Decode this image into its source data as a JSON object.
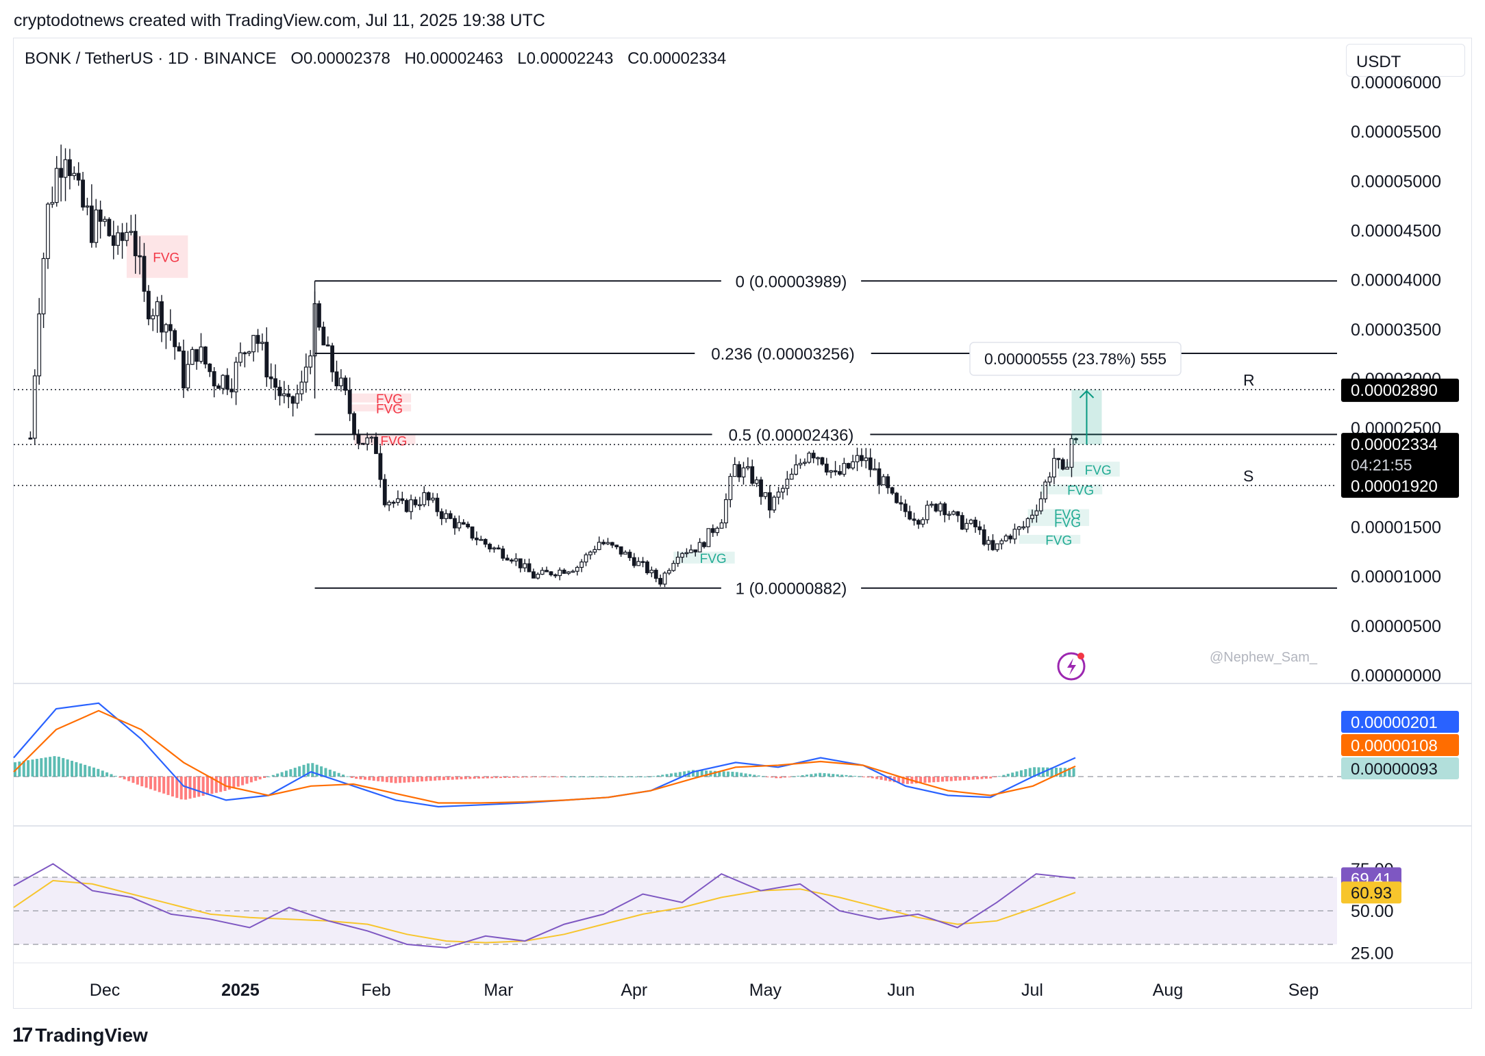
{
  "header": {
    "text": "cryptodotnews created with TradingView.com, Jul 11, 2025 19:38 UTC"
  },
  "symbol": {
    "pair": "BONK / TetherUS · 1D · BINANCE",
    "open": "O0.00002378",
    "high": "H0.00002463",
    "low": "L0.00002243",
    "close": "C0.00002334"
  },
  "currency": "USDT",
  "brand": "TradingView",
  "watermark": "@Nephew_Sam_",
  "colors": {
    "up": "#089981",
    "down": "#f23645",
    "candle": "#131722",
    "macd": "#2962ff",
    "signal": "#ff6d00",
    "rsi": "#7e57c2",
    "rsi_ma": "#f7c52c"
  },
  "chart_data": [
    {
      "type": "candlestick",
      "title": "BONK / TetherUS · 1D · BINANCE",
      "x_ticks": [
        "Dec",
        "2025",
        "Feb",
        "Mar",
        "Apr",
        "May",
        "Jun",
        "Jul",
        "Aug",
        "Sep"
      ],
      "y_ticks": [
        "0.00006000",
        "0.00005500",
        "0.00005000",
        "0.00004500",
        "0.00004000",
        "0.00003500",
        "0.00003000",
        "0.00002500",
        "0.00002000",
        "0.00001500",
        "0.00001000",
        "0.00000500",
        "0.00000000"
      ],
      "ylim": [
        0,
        6e-05
      ],
      "fib_levels": [
        {
          "label": "0 (0.00003989)",
          "value": 3.989e-05
        },
        {
          "label": "0.236 (0.00003256)",
          "value": 3.256e-05
        },
        {
          "label": "0.5 (0.00002436)",
          "value": 2.436e-05
        },
        {
          "label": "1 (0.00000882)",
          "value": 8.82e-06
        }
      ],
      "levels": [
        {
          "label": "R",
          "price": "0.00002890",
          "value": 2.89e-05
        },
        {
          "label": "S",
          "price": "0.00001920",
          "value": 1.92e-05
        }
      ],
      "last_price": "0.00002334",
      "countdown": "04:21:55",
      "measure": {
        "label": "0.00000555 (23.78%) 555",
        "from": 2.334e-05,
        "to": 2.89e-05
      },
      "fvg_label": "FVG",
      "fvg_zones": [
        {
          "kind": "bear",
          "date": "2024-12-06",
          "top": 4.45e-05,
          "bottom": 4.02e-05,
          "weeks": 2
        },
        {
          "kind": "bear",
          "date": "2025-01-26",
          "top": 2.85e-05,
          "bottom": 2.76e-05,
          "weeks": 2
        },
        {
          "kind": "bear",
          "date": "2025-01-26",
          "top": 2.74e-05,
          "bottom": 2.67e-05,
          "weeks": 2
        },
        {
          "kind": "bear",
          "date": "2025-01-27",
          "top": 2.43e-05,
          "bottom": 2.33e-05,
          "weeks": 2
        },
        {
          "kind": "bull",
          "date": "2025-04-10",
          "top": 1.25e-05,
          "bottom": 1.13e-05,
          "weeks": 2
        },
        {
          "kind": "bull",
          "date": "2025-07-07",
          "top": 2.16e-05,
          "bottom": 2.01e-05,
          "weeks": 2
        },
        {
          "kind": "bull",
          "date": "2025-07-03",
          "top": 1.93e-05,
          "bottom": 1.83e-05,
          "weeks": 2
        },
        {
          "kind": "bull",
          "date": "2025-06-30",
          "top": 1.68e-05,
          "bottom": 1.6e-05,
          "weeks": 2
        },
        {
          "kind": "bull",
          "date": "2025-06-30",
          "top": 1.6e-05,
          "bottom": 1.51e-05,
          "weeks": 2
        },
        {
          "kind": "bull",
          "date": "2025-06-28",
          "top": 1.42e-05,
          "bottom": 1.33e-05,
          "weeks": 2
        }
      ],
      "close_path": [
        [
          "2024-11-14",
          2.4e-05
        ],
        [
          "2024-11-16",
          3.8e-05
        ],
        [
          "2024-11-18",
          4.7e-05
        ],
        [
          "2024-11-20",
          5.1e-05
        ],
        [
          "2024-11-22",
          5.4e-05
        ],
        [
          "2024-11-25",
          4.8e-05
        ],
        [
          "2024-11-28",
          4.55e-05
        ],
        [
          "2024-12-01",
          4.55e-05
        ],
        [
          "2024-12-04",
          4.3e-05
        ],
        [
          "2024-12-07",
          4.6e-05
        ],
        [
          "2024-12-10",
          3.8e-05
        ],
        [
          "2024-12-13",
          3.7e-05
        ],
        [
          "2024-12-16",
          3.5e-05
        ],
        [
          "2024-12-19",
          3e-05
        ],
        [
          "2024-12-22",
          3.3e-05
        ],
        [
          "2024-12-26",
          3e-05
        ],
        [
          "2024-12-30",
          3e-05
        ],
        [
          "2025-01-04",
          3.5e-05
        ],
        [
          "2025-01-08",
          3e-05
        ],
        [
          "2025-01-12",
          2.7e-05
        ],
        [
          "2025-01-15",
          2.9e-05
        ],
        [
          "2025-01-18",
          3.6e-05
        ],
        [
          "2025-01-21",
          3.2e-05
        ],
        [
          "2025-01-25",
          2.8e-05
        ],
        [
          "2025-01-28",
          2.4e-05
        ],
        [
          "2025-02-01",
          2.3e-05
        ],
        [
          "2025-02-03",
          1.8e-05
        ],
        [
          "2025-02-07",
          1.7e-05
        ],
        [
          "2025-02-12",
          1.8e-05
        ],
        [
          "2025-02-17",
          1.6e-05
        ],
        [
          "2025-02-22",
          1.45e-05
        ],
        [
          "2025-02-27",
          1.3e-05
        ],
        [
          "2025-03-04",
          1.2e-05
        ],
        [
          "2025-03-09",
          1e-05
        ],
        [
          "2025-03-14",
          1.05e-05
        ],
        [
          "2025-03-19",
          1.1e-05
        ],
        [
          "2025-03-24",
          1.35e-05
        ],
        [
          "2025-03-29",
          1.25e-05
        ],
        [
          "2025-04-03",
          1.1e-05
        ],
        [
          "2025-04-07",
          9.5e-06
        ],
        [
          "2025-04-11",
          1.25e-05
        ],
        [
          "2025-04-16",
          1.3e-05
        ],
        [
          "2025-04-21",
          1.6e-05
        ],
        [
          "2025-04-24",
          2.1e-05
        ],
        [
          "2025-04-28",
          2e-05
        ],
        [
          "2025-05-02",
          1.7e-05
        ],
        [
          "2025-05-07",
          2e-05
        ],
        [
          "2025-05-11",
          2.3e-05
        ],
        [
          "2025-05-14",
          2.2e-05
        ],
        [
          "2025-05-17",
          2e-05
        ],
        [
          "2025-05-20",
          2.1e-05
        ],
        [
          "2025-05-23",
          2.2e-05
        ],
        [
          "2025-05-27",
          2e-05
        ],
        [
          "2025-05-31",
          1.7e-05
        ],
        [
          "2025-06-05",
          1.6e-05
        ],
        [
          "2025-06-10",
          1.75e-05
        ],
        [
          "2025-06-14",
          1.55e-05
        ],
        [
          "2025-06-18",
          1.5e-05
        ],
        [
          "2025-06-22",
          1.25e-05
        ],
        [
          "2025-06-25",
          1.4e-05
        ],
        [
          "2025-06-29",
          1.5e-05
        ],
        [
          "2025-07-03",
          1.8e-05
        ],
        [
          "2025-07-06",
          2.2e-05
        ],
        [
          "2025-07-08",
          2e-05
        ],
        [
          "2025-07-10",
          2.4e-05
        ],
        [
          "2025-07-11",
          2.33e-05
        ]
      ]
    },
    {
      "type": "line",
      "title": "MACD",
      "values_shown": [
        "0.00000201",
        "0.00000108",
        "0.00000093"
      ],
      "series": [
        {
          "values": [
            2e-06,
            7.2e-06,
            7.8e-06,
            4e-06,
            -1e-06,
            -2.5e-06,
            -2e-06,
            5e-07,
            -1e-06,
            -2.5e-06,
            -3.2e-06,
            -3e-06,
            -2.8e-06,
            -2.5e-06,
            -2.2e-06,
            -1.5e-06,
            5e-07,
            1.5e-06,
            1e-06,
            2e-06,
            1.2e-06,
            -1e-06,
            -2e-06,
            -2.2e-06,
            0.0,
            2e-06
          ]
        },
        {
          "values": [
            5e-07,
            5e-06,
            7e-06,
            5e-06,
            1.5e-06,
            -1e-06,
            -2e-06,
            -1e-06,
            -8e-07,
            -1.8e-06,
            -2.8e-06,
            -2.8e-06,
            -2.7e-06,
            -2.5e-06,
            -2.2e-06,
            -1.5e-06,
            -2e-07,
            1e-06,
            1.2e-06,
            1.6e-06,
            1.2e-06,
            -2e-07,
            -1.5e-06,
            -2e-06,
            -1e-06,
            1.1e-06
          ]
        }
      ]
    },
    {
      "type": "line",
      "title": "RSI",
      "y_ticks": [
        "75.00",
        "50.00",
        "25.00"
      ],
      "values_shown": [
        "69.41",
        "60.93"
      ],
      "series": [
        {
          "values": [
            65,
            78,
            62,
            58,
            48,
            45,
            40,
            52,
            44,
            38,
            30,
            28,
            35,
            32,
            42,
            48,
            60,
            55,
            72,
            62,
            66,
            50,
            45,
            48,
            40,
            55,
            72,
            69.41
          ]
        },
        {
          "values": [
            52,
            68,
            66,
            60,
            54,
            48,
            46,
            45,
            44,
            42,
            36,
            32,
            31,
            32,
            36,
            42,
            48,
            52,
            58,
            62,
            63,
            58,
            52,
            46,
            42,
            44,
            52,
            60.93
          ]
        }
      ]
    }
  ]
}
